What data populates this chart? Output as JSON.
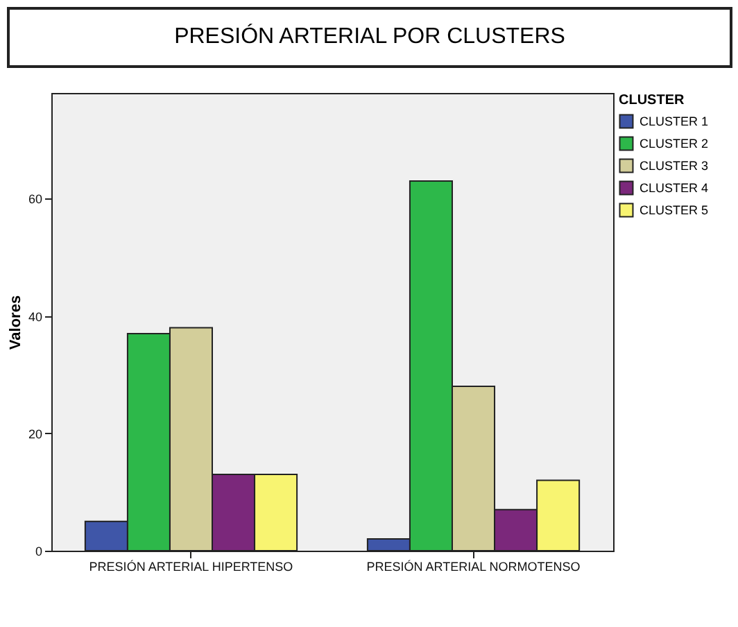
{
  "chart_data": {
    "type": "bar",
    "title": "PRESIÓN ARTERIAL POR CLUSTERS",
    "ylabel": "Valores",
    "legend_title": "CLUSTER",
    "categories": [
      "PRESIÓN ARTERIAL HIPERTENSO",
      "PRESIÓN ARTERIAL NORMOTENSO"
    ],
    "series": [
      {
        "name": "CLUSTER 1",
        "color": "#3f56a8",
        "values": [
          5,
          2
        ]
      },
      {
        "name": "CLUSTER 2",
        "color": "#2db84a",
        "values": [
          37,
          63
        ]
      },
      {
        "name": "CLUSTER 3",
        "color": "#d3ce9a",
        "values": [
          38,
          28
        ]
      },
      {
        "name": "CLUSTER 4",
        "color": "#7b287b",
        "values": [
          13,
          7
        ]
      },
      {
        "name": "CLUSTER 5",
        "color": "#f8f471",
        "values": [
          13,
          12
        ]
      }
    ],
    "ylim": [
      0,
      78
    ],
    "yticks": [
      0,
      20,
      40,
      60
    ],
    "grid": false,
    "legend": "top right"
  }
}
